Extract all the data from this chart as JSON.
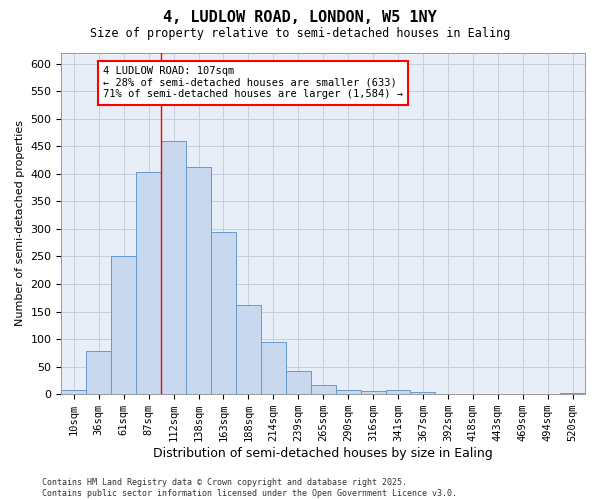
{
  "title": "4, LUDLOW ROAD, LONDON, W5 1NY",
  "subtitle": "Size of property relative to semi-detached houses in Ealing",
  "xlabel": "Distribution of semi-detached houses by size in Ealing",
  "ylabel": "Number of semi-detached properties",
  "footer_line1": "Contains HM Land Registry data © Crown copyright and database right 2025.",
  "footer_line2": "Contains public sector information licensed under the Open Government Licence v3.0.",
  "categories": [
    "10sqm",
    "36sqm",
    "61sqm",
    "87sqm",
    "112sqm",
    "138sqm",
    "163sqm",
    "188sqm",
    "214sqm",
    "239sqm",
    "265sqm",
    "290sqm",
    "316sqm",
    "341sqm",
    "367sqm",
    "392sqm",
    "418sqm",
    "443sqm",
    "469sqm",
    "494sqm",
    "520sqm"
  ],
  "values": [
    8,
    78,
    250,
    403,
    460,
    413,
    295,
    161,
    95,
    42,
    16,
    7,
    6,
    7,
    4,
    1,
    1,
    0,
    0,
    0,
    3
  ],
  "bar_color": "#c8d8ef",
  "bar_edge_color": "#6699cc",
  "ylim": [
    0,
    620
  ],
  "yticks": [
    0,
    50,
    100,
    150,
    200,
    250,
    300,
    350,
    400,
    450,
    500,
    550,
    600
  ],
  "property_label": "4 LUDLOW ROAD: 107sqm",
  "pct_smaller": 28,
  "pct_larger": 71,
  "count_smaller": 633,
  "count_larger": 1584,
  "vline_x": 3.5,
  "bg_color": "#e8eef8",
  "grid_color": "#c8cfe0"
}
